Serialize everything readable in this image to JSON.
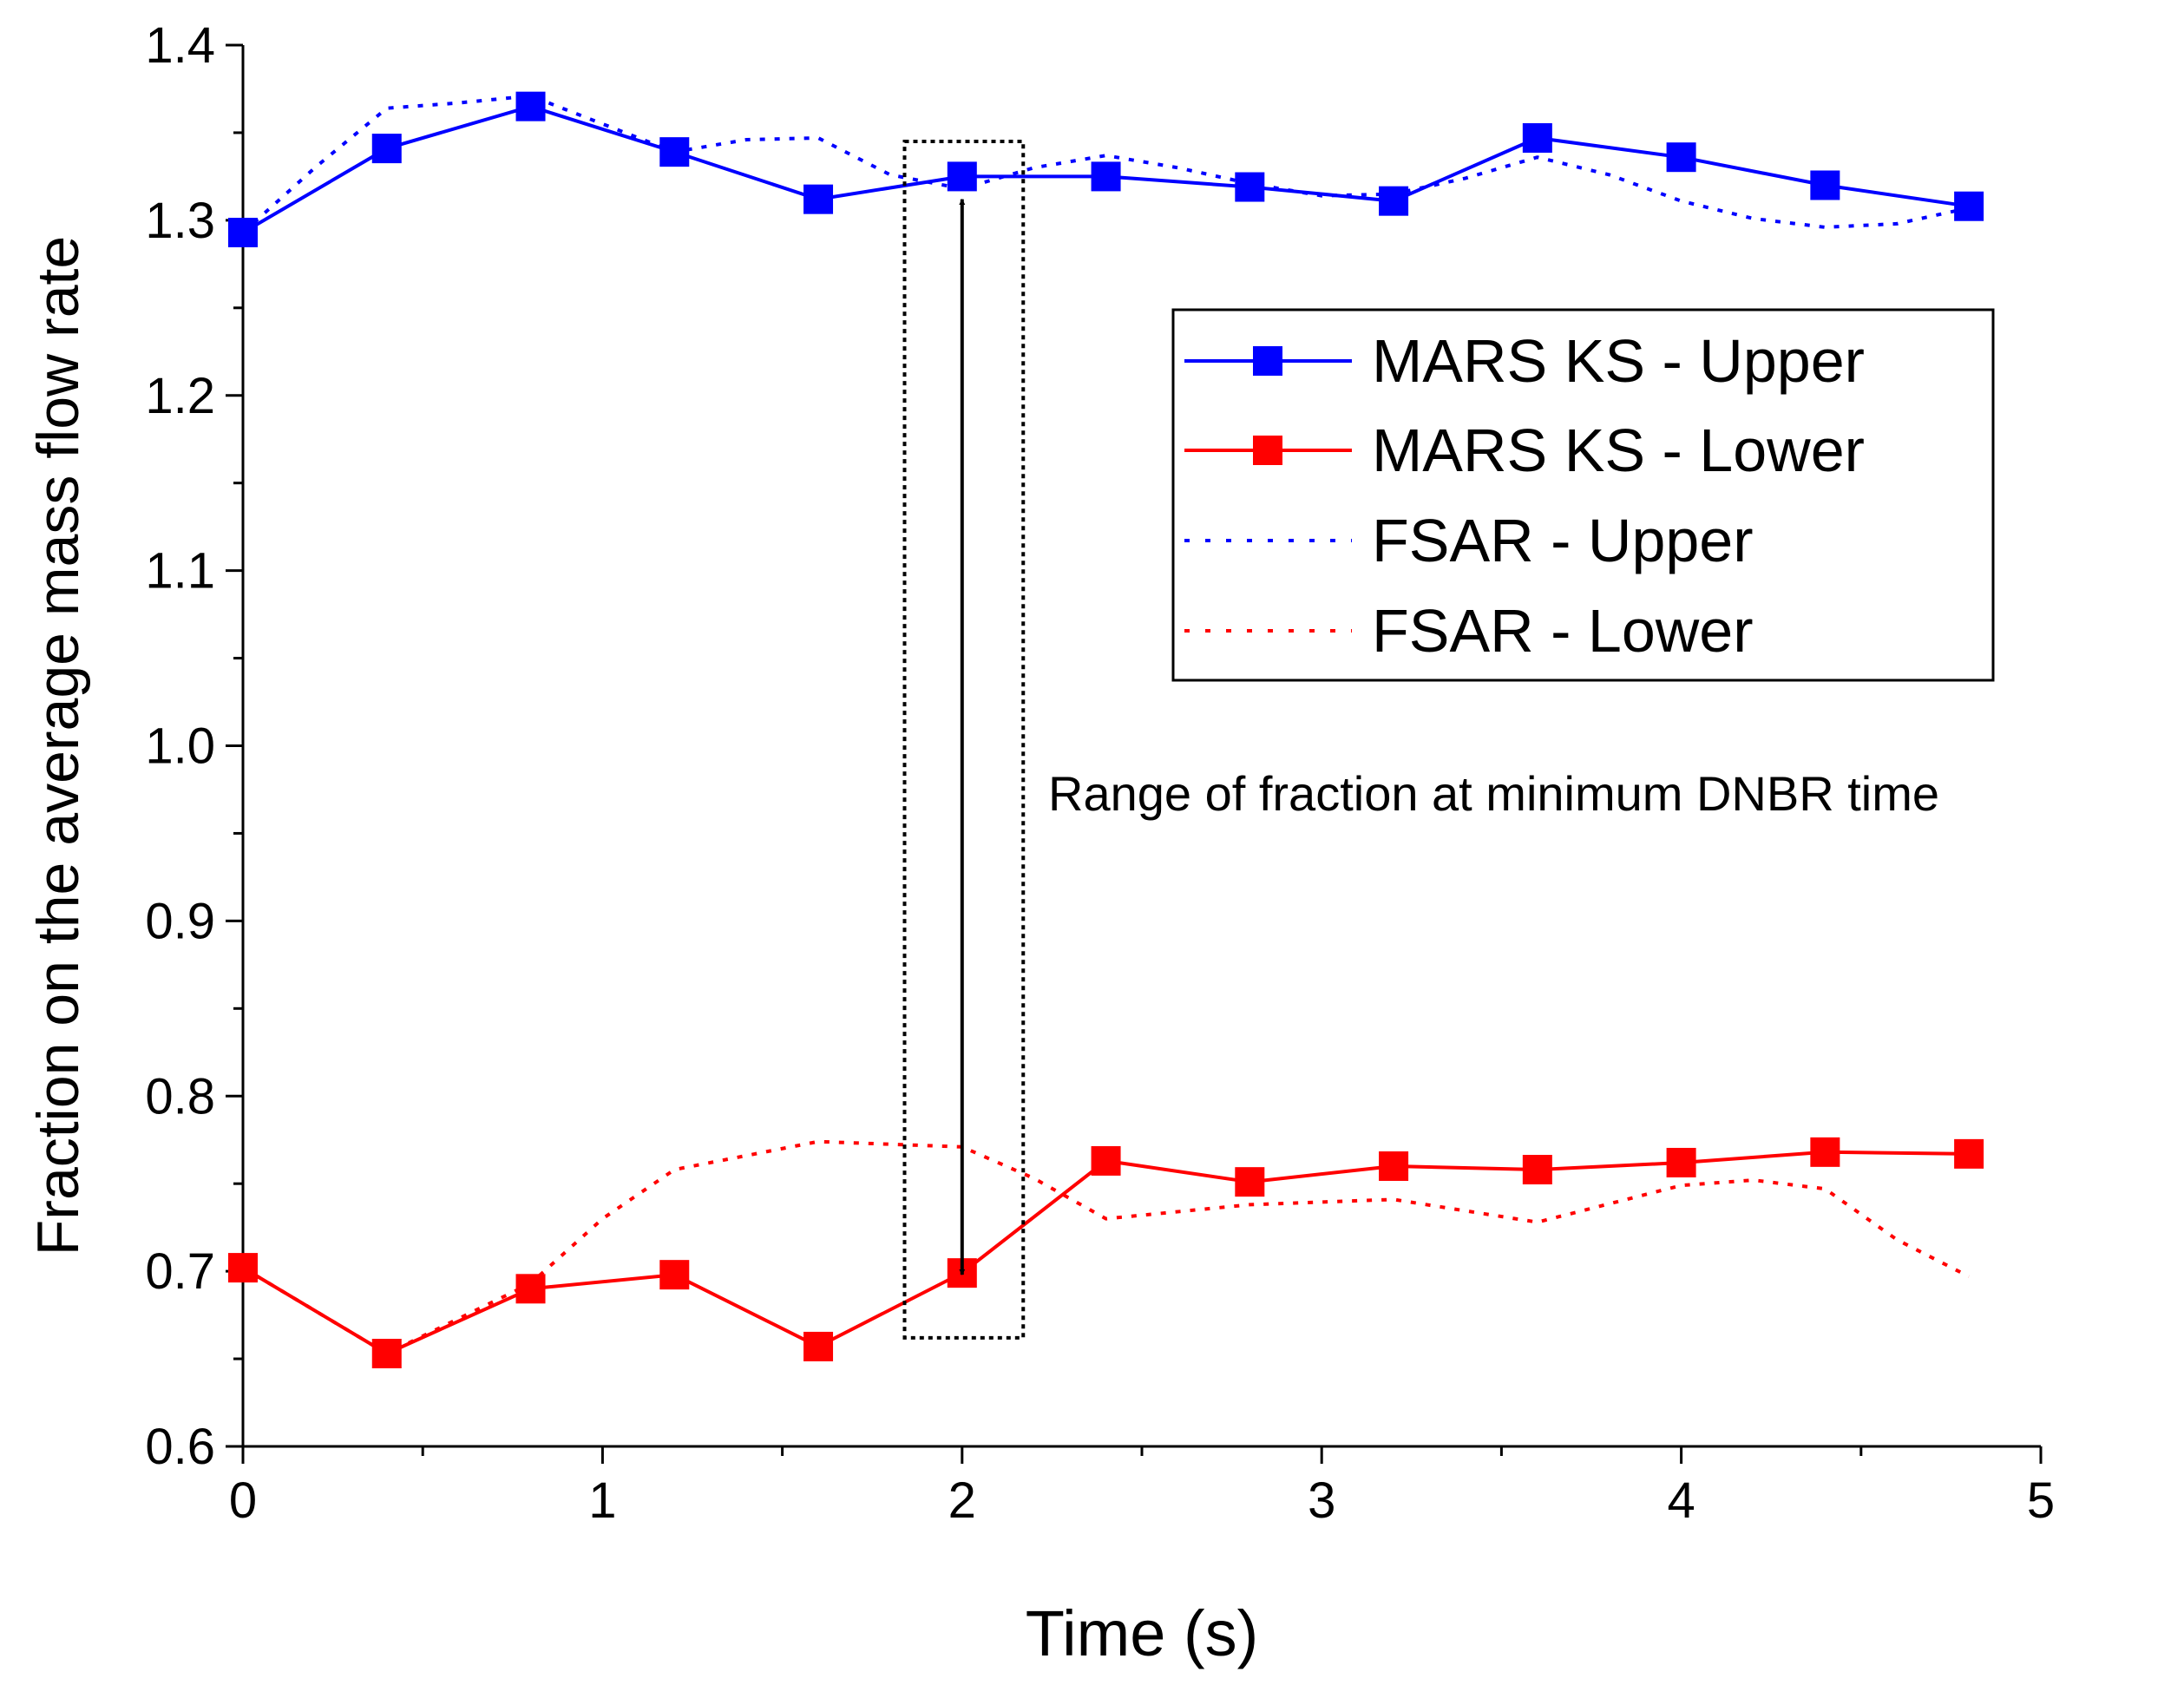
{
  "chart_data": {
    "type": "line",
    "title": "",
    "xlabel": "Time (s)",
    "ylabel": "Fraction on the average mass flow rate",
    "xlim": [
      0,
      5
    ],
    "ylim": [
      0.6,
      1.4
    ],
    "xticks": [
      0,
      1,
      2,
      3,
      4,
      5
    ],
    "xtick_labels": [
      "0",
      "1",
      "2",
      "3",
      "4",
      "5"
    ],
    "yticks": [
      0.6,
      0.7,
      0.8,
      0.9,
      1.0,
      1.1,
      1.2,
      1.3,
      1.4
    ],
    "ytick_labels": [
      "0.6",
      "0.7",
      "0.8",
      "0.9",
      "1.0",
      "1.1",
      "1.2",
      "1.3",
      "1.4"
    ],
    "grid": false,
    "legend_position": "upper-right",
    "series": [
      {
        "name": "MARS KS - Upper",
        "style": "solid-square",
        "color": "#0000ff",
        "x": [
          0,
          0.4,
          0.8,
          1.2,
          1.6,
          2.0,
          2.4,
          2.8,
          3.2,
          3.6,
          4.0,
          4.4,
          4.8
        ],
        "y": [
          1.293,
          1.341,
          1.365,
          1.339,
          1.312,
          1.325,
          1.325,
          1.319,
          1.311,
          1.347,
          1.336,
          1.32,
          1.308
        ]
      },
      {
        "name": "MARS KS - Lower",
        "style": "solid-square",
        "color": "#ff0000",
        "x": [
          0,
          0.4,
          0.8,
          1.2,
          1.6,
          2.0,
          2.4,
          2.8,
          3.2,
          3.6,
          4.0,
          4.4,
          4.8
        ],
        "y": [
          0.702,
          0.653,
          0.69,
          0.698,
          0.657,
          0.699,
          0.763,
          0.751,
          0.76,
          0.758,
          0.762,
          0.768,
          0.767
        ]
      },
      {
        "name": "FSAR - Upper",
        "style": "dotted",
        "color": "#0000ff",
        "x": [
          0,
          0.2,
          0.4,
          0.6,
          0.8,
          1.0,
          1.2,
          1.4,
          1.6,
          1.8,
          2.0,
          2.2,
          2.4,
          2.6,
          2.8,
          3.0,
          3.2,
          3.4,
          3.6,
          3.8,
          4.0,
          4.2,
          4.4,
          4.6,
          4.8
        ],
        "y": [
          1.293,
          1.33,
          1.364,
          1.367,
          1.371,
          1.355,
          1.339,
          1.346,
          1.347,
          1.326,
          1.318,
          1.33,
          1.337,
          1.33,
          1.321,
          1.314,
          1.315,
          1.324,
          1.336,
          1.326,
          1.311,
          1.301,
          1.296,
          1.298,
          1.307
        ]
      },
      {
        "name": "FSAR - Lower",
        "style": "dotted",
        "color": "#ff0000",
        "x": [
          0,
          0.4,
          0.8,
          1.0,
          1.2,
          1.6,
          2.0,
          2.2,
          2.4,
          2.8,
          3.2,
          3.6,
          4.0,
          4.2,
          4.4,
          4.6,
          4.8
        ],
        "y": [
          0.702,
          0.653,
          0.693,
          0.73,
          0.758,
          0.774,
          0.771,
          0.753,
          0.73,
          0.738,
          0.741,
          0.728,
          0.749,
          0.752,
          0.747,
          0.718,
          0.697
        ]
      }
    ],
    "annotations": [
      {
        "text": "Range of fraction at minimum DNBR time",
        "arrow_x": 2.0,
        "arrow_y_range": [
          0.698,
          1.312
        ],
        "box_x_range": [
          1.84,
          2.17
        ],
        "box_y_range": [
          0.662,
          1.345
        ]
      }
    ]
  }
}
